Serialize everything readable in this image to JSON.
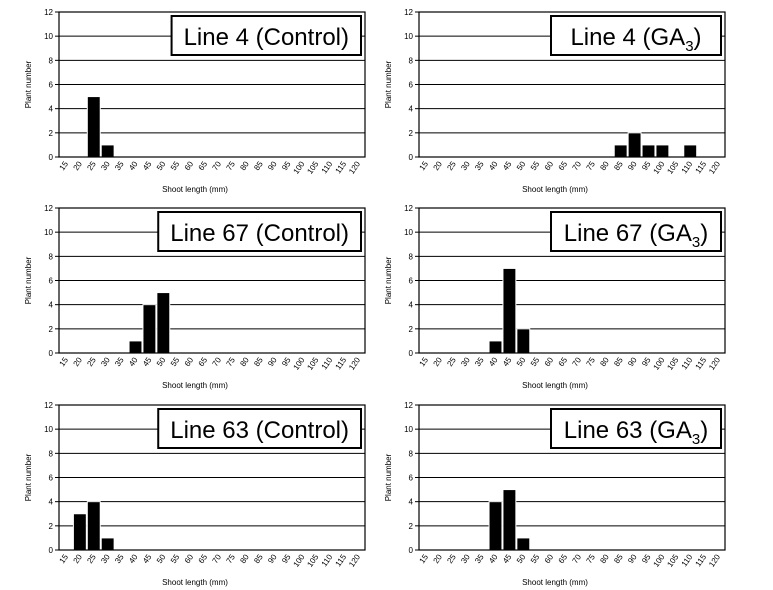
{
  "chart_data": [
    {
      "type": "bar",
      "title_main": "Line 4 (Control)",
      "title_sub": "",
      "title_tail": "",
      "xlabel": "Shoot length (mm)",
      "ylabel": "Plant number",
      "ylim": [
        0,
        12
      ],
      "yticks": [
        "0",
        "2",
        "4",
        "6",
        "8",
        "10",
        "12"
      ],
      "grid": "horizontal",
      "categories": [
        "15",
        "20",
        "25",
        "30",
        "35",
        "40",
        "45",
        "50",
        "55",
        "60",
        "65",
        "70",
        "75",
        "80",
        "85",
        "90",
        "95",
        "100",
        "105",
        "110",
        "115",
        "120"
      ],
      "values": [
        0,
        0,
        5,
        1,
        0,
        0,
        0,
        0,
        0,
        0,
        0,
        0,
        0,
        0,
        0,
        0,
        0,
        0,
        0,
        0,
        0,
        0
      ]
    },
    {
      "type": "bar",
      "title_main": "Line 4 (GA",
      "title_sub": "3",
      "title_tail": ")",
      "xlabel": "Shoot length (mm)",
      "ylabel": "Plant number",
      "ylim": [
        0,
        12
      ],
      "yticks": [
        "0",
        "2",
        "4",
        "6",
        "8",
        "10",
        "12"
      ],
      "grid": "horizontal",
      "categories": [
        "15",
        "20",
        "25",
        "30",
        "35",
        "40",
        "45",
        "50",
        "55",
        "60",
        "65",
        "70",
        "75",
        "80",
        "85",
        "90",
        "95",
        "100",
        "105",
        "110",
        "115",
        "120"
      ],
      "values": [
        0,
        0,
        0,
        0,
        0,
        0,
        0,
        0,
        0,
        0,
        0,
        0,
        0,
        0,
        1,
        2,
        1,
        1,
        0,
        1,
        0,
        0
      ]
    },
    {
      "type": "bar",
      "title_main": "Line 67 (Control)",
      "title_sub": "",
      "title_tail": "",
      "xlabel": "Shoot length (mm)",
      "ylabel": "Plant number",
      "ylim": [
        0,
        12
      ],
      "yticks": [
        "0",
        "2",
        "4",
        "6",
        "8",
        "10",
        "12"
      ],
      "grid": "horizontal",
      "categories": [
        "15",
        "20",
        "25",
        "30",
        "35",
        "40",
        "45",
        "50",
        "55",
        "60",
        "65",
        "70",
        "75",
        "80",
        "85",
        "90",
        "95",
        "100",
        "105",
        "110",
        "115",
        "120"
      ],
      "values": [
        0,
        0,
        0,
        0,
        0,
        1,
        4,
        5,
        0,
        0,
        0,
        0,
        0,
        0,
        0,
        0,
        0,
        0,
        0,
        0,
        0,
        0
      ]
    },
    {
      "type": "bar",
      "title_main": "Line 67 (GA",
      "title_sub": "3",
      "title_tail": ")",
      "xlabel": "Shoot length (mm)",
      "ylabel": "Plant number",
      "ylim": [
        0,
        12
      ],
      "yticks": [
        "0",
        "2",
        "4",
        "6",
        "8",
        "10",
        "12"
      ],
      "grid": "horizontal",
      "categories": [
        "15",
        "20",
        "25",
        "30",
        "35",
        "40",
        "45",
        "50",
        "55",
        "60",
        "65",
        "70",
        "75",
        "80",
        "85",
        "90",
        "95",
        "100",
        "105",
        "110",
        "115",
        "120"
      ],
      "values": [
        0,
        0,
        0,
        0,
        0,
        1,
        7,
        2,
        0,
        0,
        0,
        0,
        0,
        0,
        0,
        0,
        0,
        0,
        0,
        0,
        0,
        0
      ]
    },
    {
      "type": "bar",
      "title_main": "Line 63 (Control)",
      "title_sub": "",
      "title_tail": "",
      "xlabel": "Shoot length (mm)",
      "ylabel": "Plant number",
      "ylim": [
        0,
        12
      ],
      "yticks": [
        "0",
        "2",
        "4",
        "6",
        "8",
        "10",
        "12"
      ],
      "grid": "horizontal",
      "categories": [
        "15",
        "20",
        "25",
        "30",
        "35",
        "40",
        "45",
        "50",
        "55",
        "60",
        "65",
        "70",
        "75",
        "80",
        "85",
        "90",
        "95",
        "100",
        "105",
        "110",
        "115",
        "120"
      ],
      "values": [
        0,
        3,
        4,
        1,
        0,
        0,
        0,
        0,
        0,
        0,
        0,
        0,
        0,
        0,
        0,
        0,
        0,
        0,
        0,
        0,
        0,
        0
      ]
    },
    {
      "type": "bar",
      "title_main": "Line 63 (GA",
      "title_sub": "3",
      "title_tail": ")",
      "xlabel": "Shoot length (mm)",
      "ylabel": "Plant number",
      "ylim": [
        0,
        12
      ],
      "yticks": [
        "0",
        "2",
        "4",
        "6",
        "8",
        "10",
        "12"
      ],
      "grid": "horizontal",
      "categories": [
        "15",
        "20",
        "25",
        "30",
        "35",
        "40",
        "45",
        "50",
        "55",
        "60",
        "65",
        "70",
        "75",
        "80",
        "85",
        "90",
        "95",
        "100",
        "105",
        "110",
        "115",
        "120"
      ],
      "values": [
        0,
        0,
        0,
        0,
        0,
        4,
        5,
        1,
        0,
        0,
        0,
        0,
        0,
        0,
        0,
        0,
        0,
        0,
        0,
        0,
        0,
        0
      ]
    }
  ],
  "colors": {
    "bar": "#000000",
    "bar_edge": "#ffffff",
    "axis": "#000000",
    "grid": "#000000",
    "background": "#ffffff"
  }
}
